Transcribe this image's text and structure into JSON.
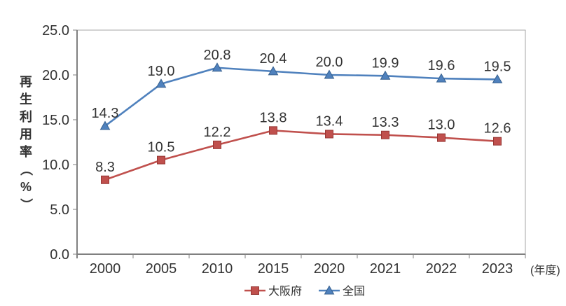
{
  "chart_data": {
    "type": "line",
    "title": "",
    "categories": [
      "2000",
      "2005",
      "2010",
      "2015",
      "2020",
      "2021",
      "2022",
      "2023"
    ],
    "series": [
      {
        "name": "大阪府",
        "marker": "square",
        "color": "#c0504d",
        "marker_edge": "#953734",
        "values": [
          8.3,
          10.5,
          12.2,
          13.8,
          13.4,
          13.3,
          13.0,
          12.6
        ],
        "value_labels": [
          "8.3",
          "10.5",
          "12.2",
          "13.8",
          "13.4",
          "13.3",
          "13.0",
          "12.6"
        ]
      },
      {
        "name": "全国",
        "marker": "triangle",
        "color": "#4f81bd",
        "marker_edge": "#38618f",
        "values": [
          14.3,
          19.0,
          20.8,
          20.4,
          20.0,
          19.9,
          19.6,
          19.5
        ],
        "value_labels": [
          "14.3",
          "19.0",
          "20.8",
          "20.4",
          "20.0",
          "19.9",
          "19.6",
          "19.5"
        ]
      }
    ],
    "ylabel": "再生利用率（%）",
    "xlabel": "(年度)",
    "ylim": [
      0,
      25
    ],
    "ytick_step": 5,
    "ytick_labels": [
      "0.0",
      "5.0",
      "10.0",
      "15.0",
      "20.0",
      "25.0"
    ],
    "grid": false,
    "legend_position": "bottom",
    "value_labels": true,
    "colors": {
      "axis": "#808080",
      "plot_border": "#a6a6a6",
      "text": "#333333",
      "background": "#ffffff"
    }
  }
}
